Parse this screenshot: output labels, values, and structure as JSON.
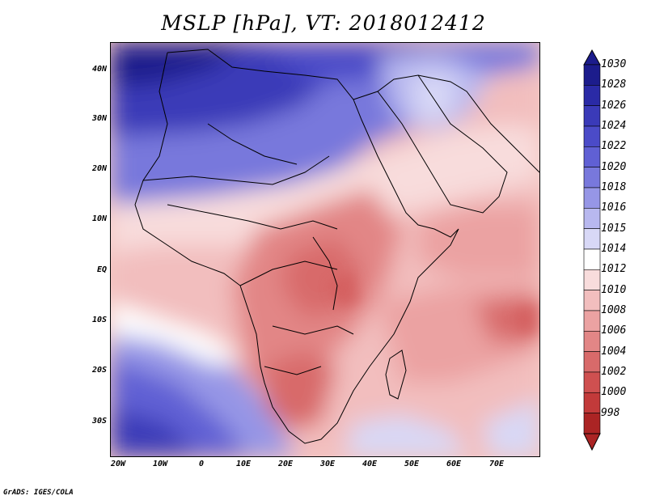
{
  "title": "MSLP [hPa], VT: 2018012412",
  "credit": "GrADS: IGES/COLA",
  "lat_ticks": [
    "40N",
    "30N",
    "20N",
    "10N",
    "EQ",
    "10S",
    "20S",
    "30S"
  ],
  "lon_ticks": [
    "20W",
    "10W",
    "0",
    "10E",
    "20E",
    "30E",
    "40E",
    "50E",
    "60E",
    "70E"
  ],
  "colorbar": {
    "levels": [
      "1030",
      "1028",
      "1026",
      "1024",
      "1022",
      "1020",
      "1018",
      "1016",
      "1015",
      "1014",
      "1012",
      "1010",
      "1008",
      "1006",
      "1004",
      "1002",
      "1000",
      "998"
    ],
    "colors": [
      "#1c1c8c",
      "#2a2aa6",
      "#3a3ab8",
      "#4b4bc8",
      "#6060d4",
      "#7878dc",
      "#9696e6",
      "#b8b8ef",
      "#d8d8f6",
      "#ffffff",
      "#f8dcdc",
      "#f2bebe",
      "#eba2a2",
      "#e28686",
      "#d86a6a",
      "#cf5050",
      "#c23a3a",
      "#ab2424"
    ]
  },
  "icons": {
    "colorbar_top": "triangle-up-icon",
    "colorbar_bottom": "triangle-down-icon"
  }
}
